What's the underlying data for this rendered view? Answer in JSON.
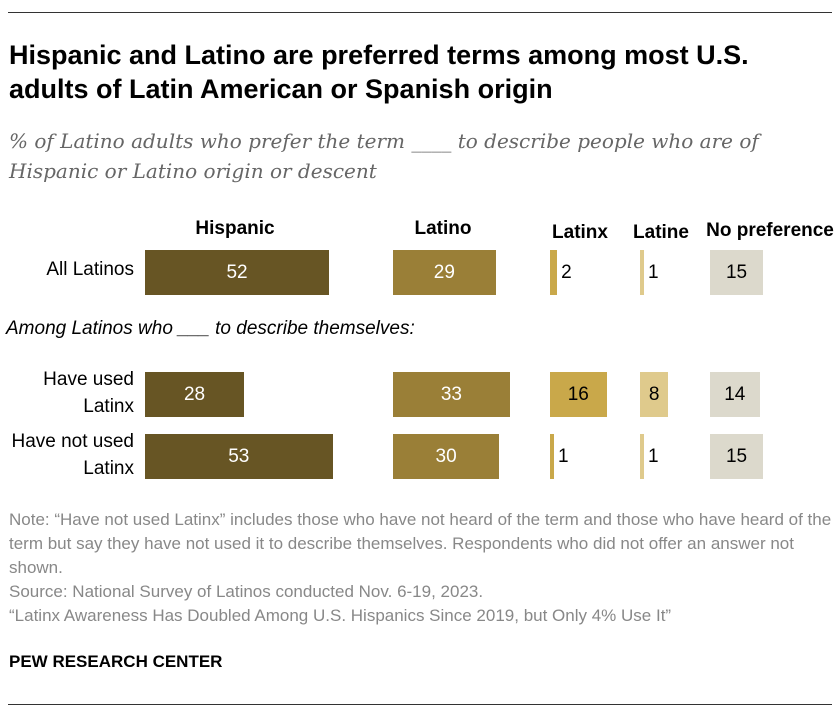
{
  "title": "Hispanic and Latino are preferred terms among most U.S. adults of Latin American or Spanish origin",
  "subtitle": "% of Latino adults who prefer the term ____ to describe people who are of Hispanic or Latino origin or descent",
  "chart_data": {
    "type": "bar",
    "series": [
      {
        "name": "Hispanic",
        "color": "#675524"
      },
      {
        "name": "Latino",
        "color": "#9a7f37"
      },
      {
        "name": "Latinx",
        "color": "#c9a84a"
      },
      {
        "name": "Latine",
        "color": "#dfca8c"
      },
      {
        "name": "No preference",
        "color": "#dcd9cc"
      }
    ],
    "rows": [
      {
        "label": "All Latinos",
        "values": [
          52,
          29,
          2,
          1,
          15
        ]
      },
      {
        "label": "Have used Latinx",
        "values": [
          28,
          33,
          16,
          8,
          14
        ]
      },
      {
        "label": "Have not used Latinx",
        "values": [
          53,
          30,
          1,
          1,
          15
        ]
      }
    ],
    "group_label": "Among Latinos who ___ to describe themselves:"
  },
  "note": "Note: “Have not used Latinx” includes those who have not heard of the term and those who have heard of the term but say they have not used it to describe themselves. Respondents who did not offer an answer not shown.",
  "source": "Source: National Survey of Latinos conducted Nov. 6-19, 2023.",
  "report": "“Latinx Awareness Has Doubled Among U.S. Hispanics Since 2019, but Only 4% Use It”",
  "logo": "PEW RESEARCH CENTER"
}
